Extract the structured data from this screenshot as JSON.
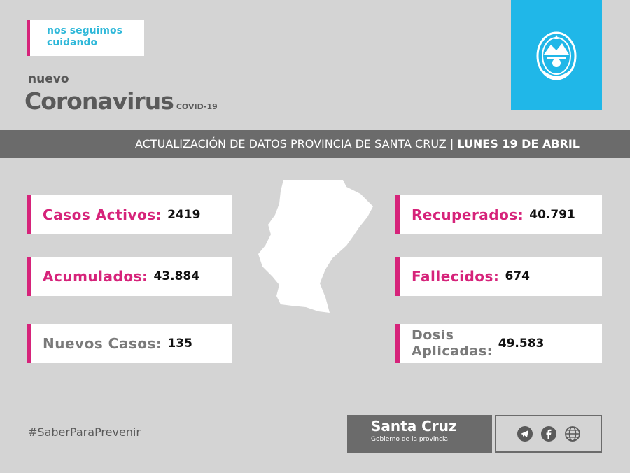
{
  "tagline": {
    "line1": "nos seguimos",
    "line2": "cuidando"
  },
  "heading": {
    "small": "nuevo",
    "main": "Coronavirus",
    "tag": "COVID-19"
  },
  "banner": {
    "text": "ACTUALIZACIÓN DE DATOS PROVINCIA DE SANTA CRUZ | ",
    "date": "LUNES 19 DE ABRIL"
  },
  "stats": {
    "activos": {
      "label": "Casos Activos:",
      "value": "2419"
    },
    "acumulados": {
      "label": "Acumulados:",
      "value": "43.884"
    },
    "nuevos": {
      "label": "Nuevos Casos:",
      "value": "135"
    },
    "recuperados": {
      "label": "Recuperados:",
      "value": "40.791"
    },
    "fallecidos": {
      "label": "Fallecidos:",
      "value": "674"
    },
    "dosis": {
      "label_line1": "Dosis",
      "label_line2": "Aplicadas:",
      "value": "49.583"
    }
  },
  "footer": {
    "hashtag": "#SaberParaPrevenir",
    "brand": "Santa Cruz",
    "brand_sub": "Gobierno de la provincia"
  },
  "icons": {
    "emblem": "provincial-emblem-icon",
    "map": "santa-cruz-map-icon",
    "social": [
      "telegram-icon",
      "facebook-icon",
      "globe-icon"
    ]
  },
  "colors": {
    "background": "#d4d4d4",
    "accent": "#d6237a",
    "cyan": "#20b7e8",
    "banner": "#6b6b6b"
  }
}
